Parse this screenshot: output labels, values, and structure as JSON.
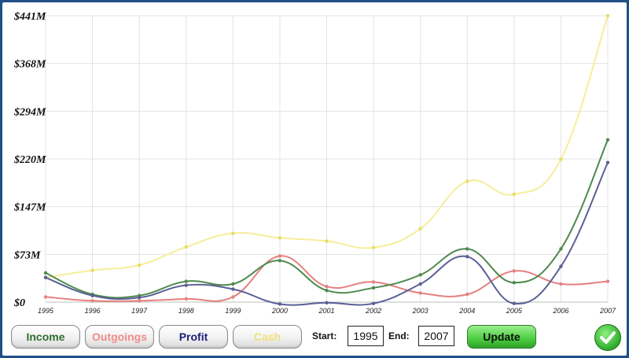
{
  "chart_data": {
    "type": "line",
    "x": [
      "1995",
      "1996",
      "1997",
      "1998",
      "1999",
      "2000",
      "2001",
      "2002",
      "2003",
      "2004",
      "2005",
      "2006",
      "2007"
    ],
    "ytick_labels": [
      "$0",
      "$73M",
      "$147M",
      "$220M",
      "$294M",
      "$368M",
      "$441M"
    ],
    "ylim": [
      0,
      441
    ],
    "grid": true,
    "series": [
      {
        "name": "Income",
        "color": "#4f8a4f",
        "values": [
          45,
          12,
          10,
          32,
          28,
          64,
          18,
          22,
          42,
          82,
          30,
          82,
          250
        ]
      },
      {
        "name": "Outgoings",
        "color": "#e58080",
        "values": [
          8,
          2,
          2,
          5,
          8,
          71,
          24,
          31,
          14,
          12,
          48,
          28,
          32
        ]
      },
      {
        "name": "Profit",
        "color": "#5a5f96",
        "values": [
          38,
          10,
          7,
          26,
          20,
          -3,
          -1,
          -2,
          28,
          70,
          -2,
          55,
          215
        ]
      },
      {
        "name": "Cash",
        "color": "#f5ee9a",
        "values": [
          38,
          49,
          57,
          85,
          106,
          99,
          94,
          84,
          113,
          186,
          166,
          220,
          441
        ]
      }
    ]
  },
  "controls": {
    "series_buttons": [
      {
        "label": "Income",
        "color": "#2f6e2f"
      },
      {
        "label": "Outgoings",
        "color": "#f08a8a"
      },
      {
        "label": "Profit",
        "color": "#1e1e7a"
      },
      {
        "label": "Cash",
        "color": "#efe07a"
      }
    ],
    "start_label": "Start:",
    "start_value": "1995",
    "end_label": "End:",
    "end_value": "2007",
    "update_label": "Update",
    "ok_icon": "checkmark-icon"
  }
}
